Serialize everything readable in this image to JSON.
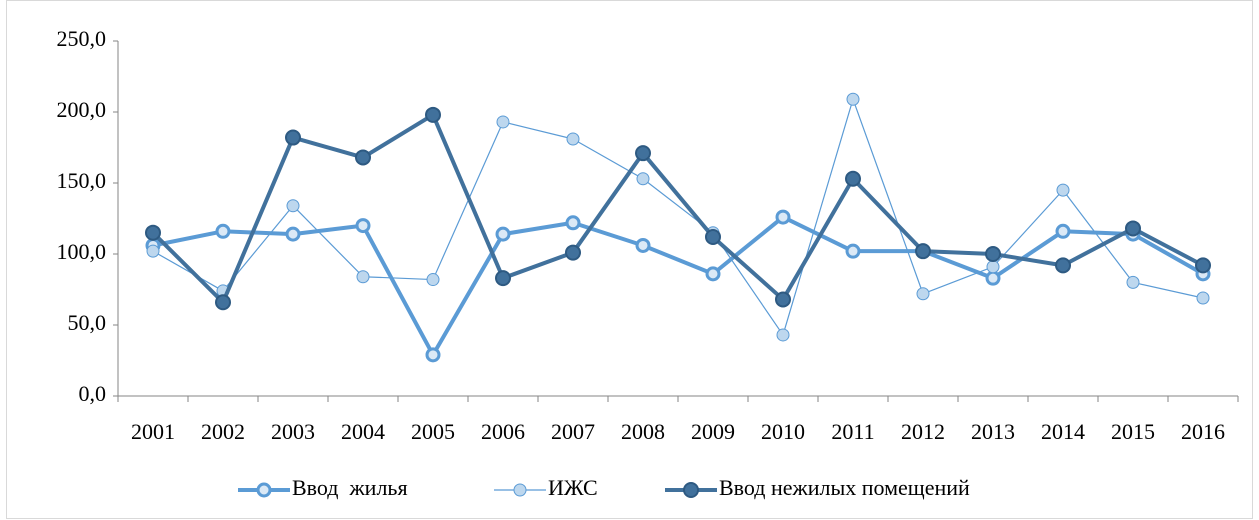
{
  "chart_data": {
    "type": "line",
    "categories": [
      "2001",
      "2002",
      "2003",
      "2004",
      "2005",
      "2006",
      "2007",
      "2008",
      "2009",
      "2010",
      "2011",
      "2012",
      "2013",
      "2014",
      "2015",
      "2016"
    ],
    "series": [
      {
        "name": "Ввод  жилья",
        "color": "#5b9bd5",
        "values": [
          106,
          116,
          114,
          120,
          29,
          114,
          122,
          106,
          86,
          126,
          102,
          102,
          83,
          116,
          114,
          86
        ]
      },
      {
        "name": "ИЖС",
        "color": "#5b9bd5",
        "values": [
          102,
          74,
          134,
          84,
          82,
          193,
          181,
          153,
          115,
          43,
          209,
          72,
          91,
          145,
          80,
          69
        ]
      },
      {
        "name": "Ввод нежилых помещений",
        "color": "#41719c",
        "values": [
          115,
          66,
          182,
          168,
          198,
          83,
          101,
          171,
          112,
          68,
          153,
          102,
          100,
          92,
          118,
          92
        ]
      }
    ],
    "ylim": [
      0,
      250
    ],
    "yticks": [
      {
        "value": 0,
        "label": "0,0"
      },
      {
        "value": 50,
        "label": "50,0"
      },
      {
        "value": 100,
        "label": "100,0"
      },
      {
        "value": 150,
        "label": "150,0"
      },
      {
        "value": 200,
        "label": "200,0"
      },
      {
        "value": 250,
        "label": "250,0"
      }
    ],
    "grid": false,
    "legend": "bottom"
  }
}
